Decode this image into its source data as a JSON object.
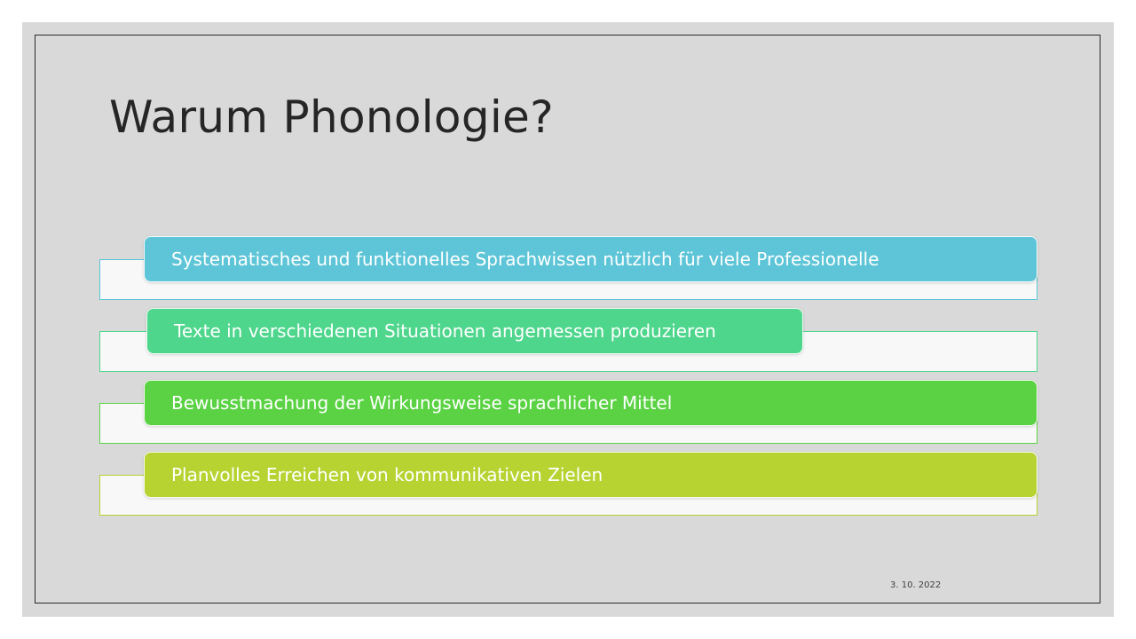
{
  "slide": {
    "title": "Warum Phonologie?",
    "date": "3. 10. 2022"
  },
  "items": [
    {
      "label": "Systematisches und funktionelles Sprachwissen nützlich für viele Professionelle",
      "color": "#5dc5d7"
    },
    {
      "label": "Texte in verschiedenen Situationen angemessen produzieren",
      "color": "#4dd68c"
    },
    {
      "label": "Bewusstmachung der Wirkungsweise sprachlicher Mittel",
      "color": "#5ad243"
    },
    {
      "label": "Planvolles Erreichen von kommunikativen Zielen",
      "color": "#b6d332"
    }
  ]
}
